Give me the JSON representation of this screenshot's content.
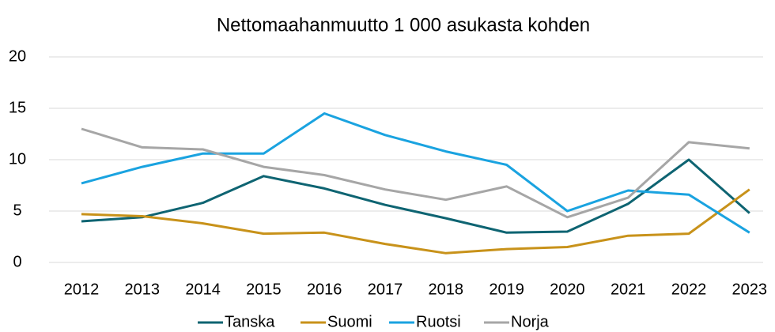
{
  "chart_data": {
    "type": "line",
    "title": "Nettomaahanmuutto 1 000 asukasta kohden",
    "categories": [
      "2012",
      "2013",
      "2014",
      "2015",
      "2016",
      "2017",
      "2018",
      "2019",
      "2020",
      "2021",
      "2022",
      "2023"
    ],
    "series": [
      {
        "name": "Tanska",
        "color": "#0e6472",
        "values": [
          4.0,
          4.4,
          5.8,
          8.4,
          7.2,
          5.6,
          4.3,
          2.9,
          3.0,
          5.7,
          10.0,
          4.8
        ]
      },
      {
        "name": "Suomi",
        "color": "#c8921a",
        "values": [
          4.7,
          4.5,
          3.8,
          2.8,
          2.9,
          1.8,
          0.9,
          1.3,
          1.5,
          2.6,
          2.8,
          7.1
        ]
      },
      {
        "name": "Ruotsi",
        "color": "#1aa3e0",
        "values": [
          7.7,
          9.3,
          10.6,
          10.6,
          14.5,
          12.4,
          10.8,
          9.5,
          5.0,
          7.0,
          6.6,
          2.9
        ]
      },
      {
        "name": "Norja",
        "color": "#a6a6a6",
        "values": [
          13.0,
          11.2,
          11.0,
          9.3,
          8.5,
          7.1,
          6.1,
          7.4,
          4.4,
          6.3,
          11.7,
          11.1
        ]
      }
    ],
    "ylim": [
      0,
      20
    ],
    "yticks": [
      0,
      5,
      10,
      15,
      20
    ],
    "grid": true,
    "legend": "bottom"
  }
}
